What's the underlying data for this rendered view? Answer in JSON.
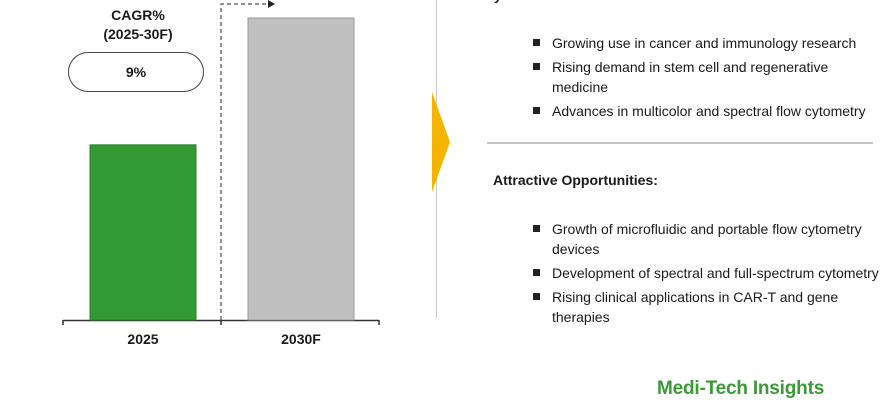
{
  "chart_data": {
    "type": "bar",
    "categories": [
      "2025",
      "2030F"
    ],
    "values": [
      0.58,
      1.0
    ],
    "value_note_visible": false,
    "colors": [
      "#339933",
      "#c0c0c0"
    ],
    "ylim": [
      0,
      1.0
    ],
    "xlabel": "",
    "ylabel": "",
    "cagr": {
      "title_line1": "CAGR%",
      "title_line2": "(2025-30F)",
      "value": "9%"
    }
  },
  "top_fragment": "y",
  "drivers": [
    "Growing use in cancer and immunology research",
    "Rising demand in stem cell and regenerative medicine",
    "Advances in multicolor and spectral flow cytometry"
  ],
  "opportunities_heading": "Attractive Opportunities:",
  "opportunities": [
    "Growth of microfluidic and portable flow cytometry devices",
    "Development of spectral and full-spectrum cytometry",
    "Rising clinical applications in CAR-T and gene therapies"
  ],
  "brand": "Medi-Tech Insights",
  "accent_color": "#f5b400",
  "brand_color": "#3a9a36"
}
